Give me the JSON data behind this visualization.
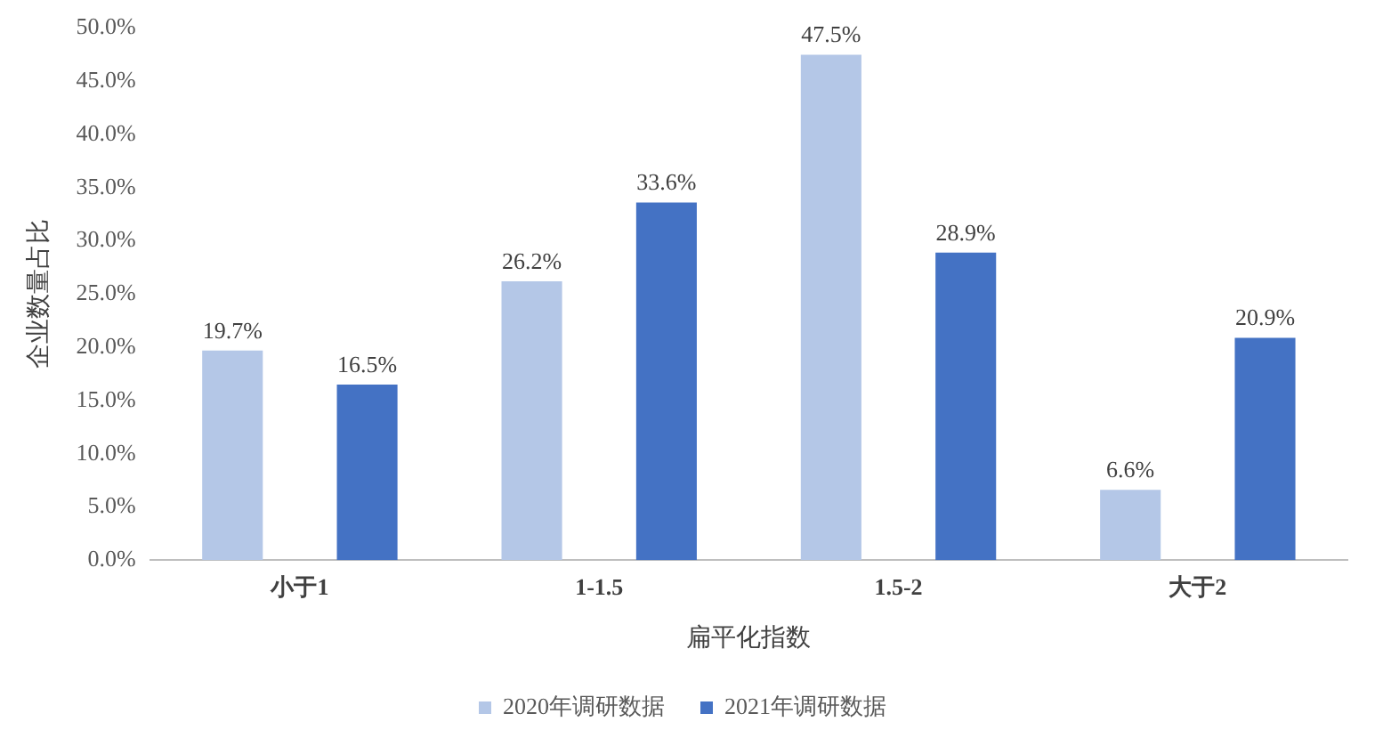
{
  "chart_data": {
    "type": "bar",
    "xlabel": "扁平化指数",
    "ylabel": "企业数量占比",
    "categories": [
      "小于1",
      "1-1.5",
      "1.5-2",
      "大于2"
    ],
    "series": [
      {
        "name": "2020年调研数据",
        "color": "#b4c7e7",
        "values": [
          19.7,
          26.2,
          47.5,
          6.6
        ],
        "value_labels": [
          "19.7%",
          "26.2%",
          "47.5%",
          "6.6%"
        ]
      },
      {
        "name": "2021年调研数据",
        "color": "#4472c4",
        "values": [
          16.5,
          33.6,
          28.9,
          20.9
        ],
        "value_labels": [
          "16.5%",
          "33.6%",
          "28.9%",
          "20.9%"
        ]
      }
    ],
    "ylim": [
      0,
      50
    ],
    "yticks": [
      {
        "value": 0,
        "label": "0.0%"
      },
      {
        "value": 5,
        "label": "5.0%"
      },
      {
        "value": 10,
        "label": "10.0%"
      },
      {
        "value": 15,
        "label": "15.0%"
      },
      {
        "value": 20,
        "label": "20.0%"
      },
      {
        "value": 25,
        "label": "25.0%"
      },
      {
        "value": 30,
        "label": "30.0%"
      },
      {
        "value": 35,
        "label": "35.0%"
      },
      {
        "value": 40,
        "label": "40.0%"
      },
      {
        "value": 45,
        "label": "45.0%"
      },
      {
        "value": 50,
        "label": "50.0%"
      }
    ],
    "grid": false,
    "legend": "bottom"
  }
}
